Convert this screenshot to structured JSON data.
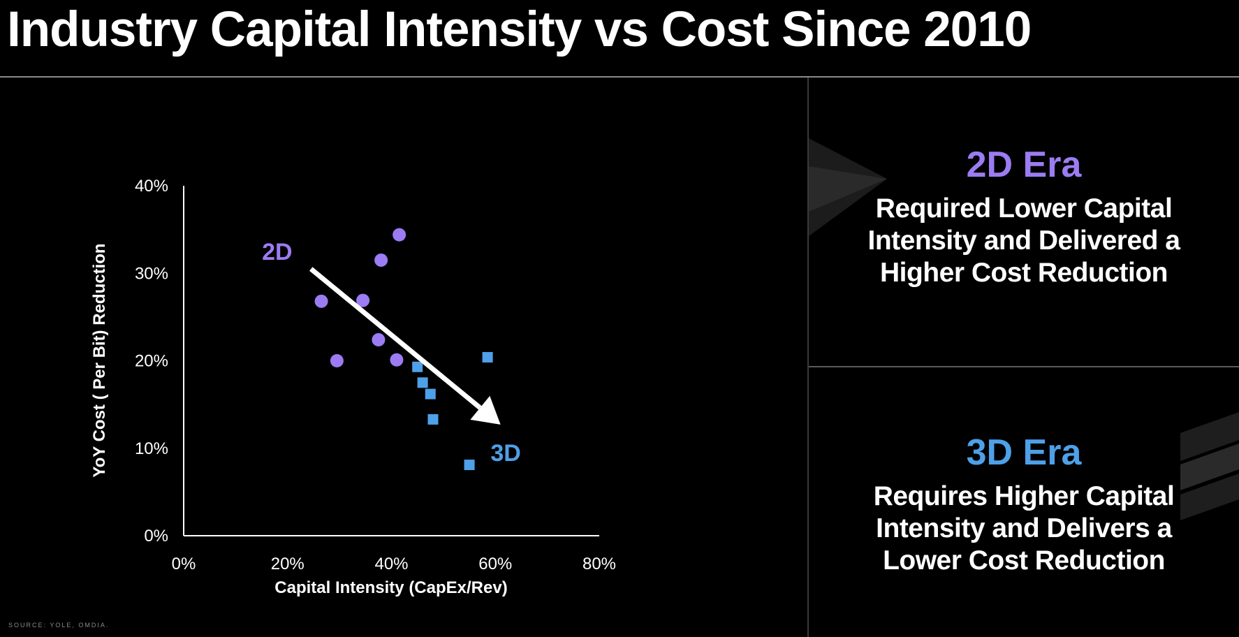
{
  "page": {
    "title": "Industry Capital Intensity vs Cost Since 2010",
    "source": "SOURCE: YOLE, OMDIA."
  },
  "panels": [
    {
      "title": "2D Era",
      "title_color": "#9b7cf2",
      "lines": [
        "Required Lower Capital",
        "Intensity and Delivered a",
        "Higher Cost Reduction"
      ]
    },
    {
      "title": "3D Era",
      "title_color": "#4ea0e8",
      "lines": [
        "Requires Higher Capital",
        "Intensity and Delivers a",
        "Lower Cost Reduction"
      ]
    }
  ],
  "chart_data": {
    "type": "scatter",
    "title": "",
    "xlabel": "Capital Intensity (CapEx/Rev)",
    "ylabel": "YoY Cost ( Per Bit) Reduction",
    "xlim": [
      0,
      80
    ],
    "ylim": [
      0,
      40
    ],
    "x_ticks": [
      0,
      20,
      40,
      60,
      80
    ],
    "y_ticks": [
      0,
      10,
      20,
      30,
      40
    ],
    "x_tick_labels": [
      "0%",
      "20%",
      "40%",
      "60%",
      "80%"
    ],
    "y_tick_labels": [
      "0%",
      "10%",
      "20%",
      "30%",
      "40%"
    ],
    "grid": false,
    "series": [
      {
        "marker": "circle",
        "color": "#9b7cf2",
        "points": [
          {
            "x": 26.5,
            "y": 26.8
          },
          {
            "x": 29.5,
            "y": 20.0
          },
          {
            "x": 34.5,
            "y": 26.9
          },
          {
            "x": 37.5,
            "y": 22.4
          },
          {
            "x": 38.0,
            "y": 31.5
          },
          {
            "x": 41.0,
            "y": 20.1
          },
          {
            "x": 41.5,
            "y": 34.4
          }
        ]
      },
      {
        "marker": "square",
        "color": "#4ea0e8",
        "points": [
          {
            "x": 45.0,
            "y": 19.3
          },
          {
            "x": 46.0,
            "y": 17.5
          },
          {
            "x": 47.5,
            "y": 16.2
          },
          {
            "x": 48.0,
            "y": 13.3
          },
          {
            "x": 55.0,
            "y": 8.1
          },
          {
            "x": 58.5,
            "y": 20.4
          }
        ]
      }
    ],
    "annotations": [
      {
        "text": "2D",
        "x": 18.0,
        "y": 32.5,
        "color": "#9b7cf2"
      },
      {
        "text": "3D",
        "x": 62.0,
        "y": 9.5,
        "color": "#4ea0e8"
      }
    ],
    "trend_arrow": {
      "from": {
        "x": 24.5,
        "y": 30.5
      },
      "to": {
        "x": 61.0,
        "y": 12.7
      },
      "color": "#ffffff"
    }
  }
}
